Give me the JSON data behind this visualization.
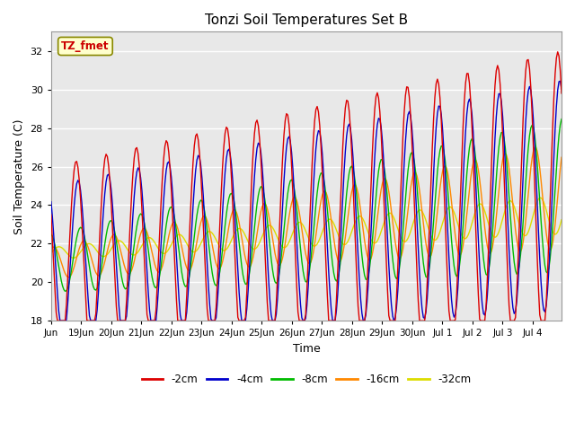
{
  "title": "Tonzi Soil Temperatures Set B",
  "xlabel": "Time",
  "ylabel": "Soil Temperature (C)",
  "ylim": [
    18,
    33
  ],
  "ylim_display": [
    18,
    32
  ],
  "yticks": [
    18,
    20,
    22,
    24,
    26,
    28,
    30,
    32
  ],
  "annotation_text": "TZ_fmet",
  "annotation_color": "#cc0000",
  "annotation_bg": "#ffffcc",
  "annotation_border": "#888800",
  "line_colors": {
    "-2cm": "#dd0000",
    "-4cm": "#0000cc",
    "-8cm": "#00bb00",
    "-16cm": "#ff8800",
    "-32cm": "#dddd00"
  },
  "legend_labels": [
    "-2cm",
    "-4cm",
    "-8cm",
    "-16cm",
    "-32cm"
  ],
  "plot_bg": "#e8e8e8",
  "grid_color": "#ffffff",
  "n_points": 400
}
